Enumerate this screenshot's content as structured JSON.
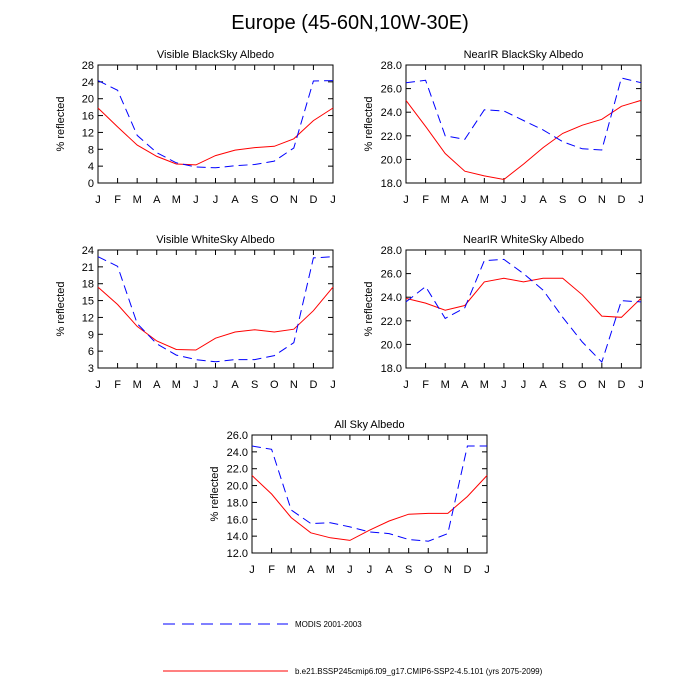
{
  "title": "Europe (45-60N,10W-30E)",
  "months": [
    "J",
    "F",
    "M",
    "A",
    "M",
    "J",
    "J",
    "A",
    "S",
    "O",
    "N",
    "D",
    "J"
  ],
  "ylabel": "% reflected",
  "colors": {
    "model": "#ff0000",
    "obs": "#0000ff"
  },
  "legend": {
    "obs_label": "MODIS 2001-2003",
    "model_label": "b.e21.BSSP245cmip6.f09_g17.CMIP6-SSP2-4.5.101 (yrs 2075-2099)"
  },
  "chart_data": [
    {
      "type": "line",
      "title": "Visible BlackSky Albedo",
      "ylabel": "% reflected",
      "ylim": [
        0,
        28
      ],
      "yticks": [
        "0",
        "4",
        "8",
        "12",
        "16",
        "20",
        "24",
        "28"
      ],
      "x": [
        "J",
        "F",
        "M",
        "A",
        "M",
        "J",
        "J",
        "A",
        "S",
        "O",
        "N",
        "D",
        "J"
      ],
      "series": [
        {
          "name": "b.e21.BSSP245cmip6.f09_g17.CMIP6-SSP2-4.5.101 (yrs 2075-2099)",
          "style": "solid",
          "color": "#ff0000",
          "values": [
            17.8,
            13.3,
            9.0,
            6.3,
            4.5,
            4.3,
            6.5,
            7.8,
            8.4,
            8.7,
            10.5,
            14.8,
            17.8
          ]
        },
        {
          "name": "MODIS 2001-2003",
          "style": "dashed",
          "color": "#0000ff",
          "values": [
            24.3,
            22.0,
            11.3,
            7.2,
            4.8,
            3.8,
            3.6,
            4.1,
            4.4,
            5.2,
            8.3,
            24.2,
            24.3
          ]
        }
      ]
    },
    {
      "type": "line",
      "title": "NearIR BlackSky Albedo",
      "ylabel": "% reflected",
      "ylim": [
        18,
        28
      ],
      "yticks": [
        "18.0",
        "20.0",
        "22.0",
        "24.0",
        "26.0",
        "28.0"
      ],
      "x": [
        "J",
        "F",
        "M",
        "A",
        "M",
        "J",
        "J",
        "A",
        "S",
        "O",
        "N",
        "D",
        "J"
      ],
      "series": [
        {
          "name": "b.e21.BSSP245cmip6.f09_g17.CMIP6-SSP2-4.5.101 (yrs 2075-2099)",
          "style": "solid",
          "color": "#ff0000",
          "values": [
            25.0,
            22.8,
            20.5,
            19.0,
            18.6,
            18.3,
            19.6,
            21.0,
            22.2,
            22.9,
            23.4,
            24.5,
            25.0
          ]
        },
        {
          "name": "MODIS 2001-2003",
          "style": "dashed",
          "color": "#0000ff",
          "values": [
            26.5,
            26.7,
            22.0,
            21.7,
            24.2,
            24.1,
            23.3,
            22.5,
            21.5,
            20.9,
            20.8,
            26.9,
            26.5
          ]
        }
      ]
    },
    {
      "type": "line",
      "title": "Visible WhiteSky Albedo",
      "ylabel": "% reflected",
      "ylim": [
        3,
        24
      ],
      "yticks": [
        "3",
        "6",
        "9",
        "12",
        "15",
        "18",
        "21",
        "24"
      ],
      "x": [
        "J",
        "F",
        "M",
        "A",
        "M",
        "J",
        "J",
        "A",
        "S",
        "O",
        "N",
        "D",
        "J"
      ],
      "series": [
        {
          "name": "b.e21.BSSP245cmip6.f09_g17.CMIP6-SSP2-4.5.101 (yrs 2075-2099)",
          "style": "solid",
          "color": "#ff0000",
          "values": [
            17.4,
            14.3,
            10.4,
            7.8,
            6.3,
            6.2,
            8.3,
            9.4,
            9.8,
            9.4,
            9.9,
            13.2,
            17.4
          ]
        },
        {
          "name": "MODIS 2001-2003",
          "style": "dashed",
          "color": "#0000ff",
          "values": [
            22.8,
            21.1,
            10.9,
            7.3,
            5.3,
            4.5,
            4.1,
            4.5,
            4.5,
            5.2,
            7.5,
            22.6,
            22.8
          ]
        }
      ]
    },
    {
      "type": "line",
      "title": "NearIR WhiteSky Albedo",
      "ylabel": "% reflected",
      "ylim": [
        18,
        28
      ],
      "yticks": [
        "18.0",
        "20.0",
        "22.0",
        "24.0",
        "26.0",
        "28.0"
      ],
      "x": [
        "J",
        "F",
        "M",
        "A",
        "M",
        "J",
        "J",
        "A",
        "S",
        "O",
        "N",
        "D",
        "J"
      ],
      "series": [
        {
          "name": "b.e21.BSSP245cmip6.f09_g17.CMIP6-SSP2-4.5.101 (yrs 2075-2099)",
          "style": "solid",
          "color": "#ff0000",
          "values": [
            23.9,
            23.5,
            22.9,
            23.3,
            25.3,
            25.6,
            25.3,
            25.6,
            25.6,
            24.2,
            22.4,
            22.3,
            23.9
          ]
        },
        {
          "name": "MODIS 2001-2003",
          "style": "dashed",
          "color": "#0000ff",
          "values": [
            23.6,
            24.9,
            22.2,
            23.1,
            27.1,
            27.2,
            26.0,
            24.6,
            22.3,
            20.2,
            18.5,
            23.7,
            23.6
          ]
        }
      ]
    },
    {
      "type": "line",
      "title": "All Sky Albedo",
      "ylabel": "% reflected",
      "ylim": [
        12,
        26
      ],
      "yticks": [
        "12.0",
        "14.0",
        "16.0",
        "18.0",
        "20.0",
        "22.0",
        "24.0",
        "26.0"
      ],
      "x": [
        "J",
        "F",
        "M",
        "A",
        "M",
        "J",
        "J",
        "A",
        "S",
        "O",
        "N",
        "D",
        "J"
      ],
      "series": [
        {
          "name": "b.e21.BSSP245cmip6.f09_g17.CMIP6-SSP2-4.5.101 (yrs 2075-2099)",
          "style": "solid",
          "color": "#ff0000",
          "values": [
            21.2,
            19.0,
            16.2,
            14.4,
            13.8,
            13.5,
            14.7,
            15.8,
            16.6,
            16.7,
            16.7,
            18.7,
            21.2
          ]
        },
        {
          "name": "MODIS 2001-2003",
          "style": "dashed",
          "color": "#0000ff",
          "values": [
            24.7,
            24.3,
            17.1,
            15.5,
            15.6,
            15.1,
            14.5,
            14.3,
            13.6,
            13.4,
            14.3,
            24.7,
            24.7
          ]
        }
      ]
    }
  ]
}
